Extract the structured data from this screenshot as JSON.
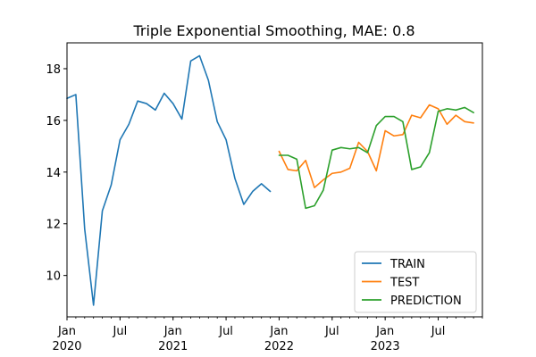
{
  "chart_data": {
    "type": "line",
    "title": "Triple Exponential Smoothing, MAE: 0.8",
    "xlabel": "",
    "ylabel": "",
    "x_start": "2020-01",
    "x_end": "2023-12",
    "ylim": [
      8.4,
      19.0
    ],
    "y_ticks": [
      10,
      12,
      14,
      16,
      18
    ],
    "x_ticks": [
      {
        "date": "2020-01",
        "label": "Jan",
        "year": "2020"
      },
      {
        "date": "2020-07",
        "label": "Jul",
        "year": ""
      },
      {
        "date": "2021-01",
        "label": "Jan",
        "year": "2021"
      },
      {
        "date": "2021-07",
        "label": "Jul",
        "year": ""
      },
      {
        "date": "2022-01",
        "label": "Jan",
        "year": "2022"
      },
      {
        "date": "2022-07",
        "label": "Jul",
        "year": ""
      },
      {
        "date": "2023-01",
        "label": "Jan",
        "year": "2023"
      },
      {
        "date": "2023-07",
        "label": "Jul",
        "year": ""
      }
    ],
    "grid": false,
    "legend_position": "bottom-right",
    "series": [
      {
        "name": "TRAIN",
        "color": "#1f77b4",
        "points": [
          {
            "x": "2020-01",
            "y": 16.85
          },
          {
            "x": "2020-02",
            "y": 17.0
          },
          {
            "x": "2020-03",
            "y": 11.8
          },
          {
            "x": "2020-04",
            "y": 8.85
          },
          {
            "x": "2020-05",
            "y": 12.5
          },
          {
            "x": "2020-06",
            "y": 13.5
          },
          {
            "x": "2020-07",
            "y": 15.25
          },
          {
            "x": "2020-08",
            "y": 15.85
          },
          {
            "x": "2020-09",
            "y": 16.75
          },
          {
            "x": "2020-10",
            "y": 16.65
          },
          {
            "x": "2020-11",
            "y": 16.4
          },
          {
            "x": "2020-12",
            "y": 17.05
          },
          {
            "x": "2021-01",
            "y": 16.65
          },
          {
            "x": "2021-02",
            "y": 16.05
          },
          {
            "x": "2021-03",
            "y": 18.3
          },
          {
            "x": "2021-04",
            "y": 18.5
          },
          {
            "x": "2021-05",
            "y": 17.55
          },
          {
            "x": "2021-06",
            "y": 15.95
          },
          {
            "x": "2021-07",
            "y": 15.25
          },
          {
            "x": "2021-08",
            "y": 13.75
          },
          {
            "x": "2021-09",
            "y": 12.75
          },
          {
            "x": "2021-10",
            "y": 13.25
          },
          {
            "x": "2021-11",
            "y": 13.55
          },
          {
            "x": "2021-12",
            "y": 13.25
          }
        ]
      },
      {
        "name": "TEST",
        "color": "#ff7f0e",
        "points": [
          {
            "x": "2022-01",
            "y": 14.8
          },
          {
            "x": "2022-02",
            "y": 14.1
          },
          {
            "x": "2022-03",
            "y": 14.05
          },
          {
            "x": "2022-04",
            "y": 14.45
          },
          {
            "x": "2022-05",
            "y": 13.4
          },
          {
            "x": "2022-06",
            "y": 13.7
          },
          {
            "x": "2022-07",
            "y": 13.95
          },
          {
            "x": "2022-08",
            "y": 14.0
          },
          {
            "x": "2022-09",
            "y": 14.15
          },
          {
            "x": "2022-10",
            "y": 15.15
          },
          {
            "x": "2022-11",
            "y": 14.8
          },
          {
            "x": "2022-12",
            "y": 14.05
          },
          {
            "x": "2023-01",
            "y": 15.6
          },
          {
            "x": "2023-02",
            "y": 15.4
          },
          {
            "x": "2023-03",
            "y": 15.45
          },
          {
            "x": "2023-04",
            "y": 16.2
          },
          {
            "x": "2023-05",
            "y": 16.1
          },
          {
            "x": "2023-06",
            "y": 16.6
          },
          {
            "x": "2023-07",
            "y": 16.45
          },
          {
            "x": "2023-08",
            "y": 15.85
          },
          {
            "x": "2023-09",
            "y": 16.2
          },
          {
            "x": "2023-10",
            "y": 15.95
          },
          {
            "x": "2023-11",
            "y": 15.9
          }
        ]
      },
      {
        "name": "PREDICTION",
        "color": "#2ca02c",
        "points": [
          {
            "x": "2022-01",
            "y": 14.65
          },
          {
            "x": "2022-02",
            "y": 14.65
          },
          {
            "x": "2022-03",
            "y": 14.5
          },
          {
            "x": "2022-04",
            "y": 12.6
          },
          {
            "x": "2022-05",
            "y": 12.7
          },
          {
            "x": "2022-06",
            "y": 13.3
          },
          {
            "x": "2022-07",
            "y": 14.85
          },
          {
            "x": "2022-08",
            "y": 14.95
          },
          {
            "x": "2022-09",
            "y": 14.9
          },
          {
            "x": "2022-10",
            "y": 14.95
          },
          {
            "x": "2022-11",
            "y": 14.75
          },
          {
            "x": "2022-12",
            "y": 15.8
          },
          {
            "x": "2023-01",
            "y": 16.15
          },
          {
            "x": "2023-02",
            "y": 16.15
          },
          {
            "x": "2023-03",
            "y": 15.95
          },
          {
            "x": "2023-04",
            "y": 14.1
          },
          {
            "x": "2023-05",
            "y": 14.2
          },
          {
            "x": "2023-06",
            "y": 14.75
          },
          {
            "x": "2023-07",
            "y": 16.35
          },
          {
            "x": "2023-08",
            "y": 16.45
          },
          {
            "x": "2023-09",
            "y": 16.4
          },
          {
            "x": "2023-10",
            "y": 16.5
          },
          {
            "x": "2023-11",
            "y": 16.3
          }
        ]
      }
    ]
  }
}
